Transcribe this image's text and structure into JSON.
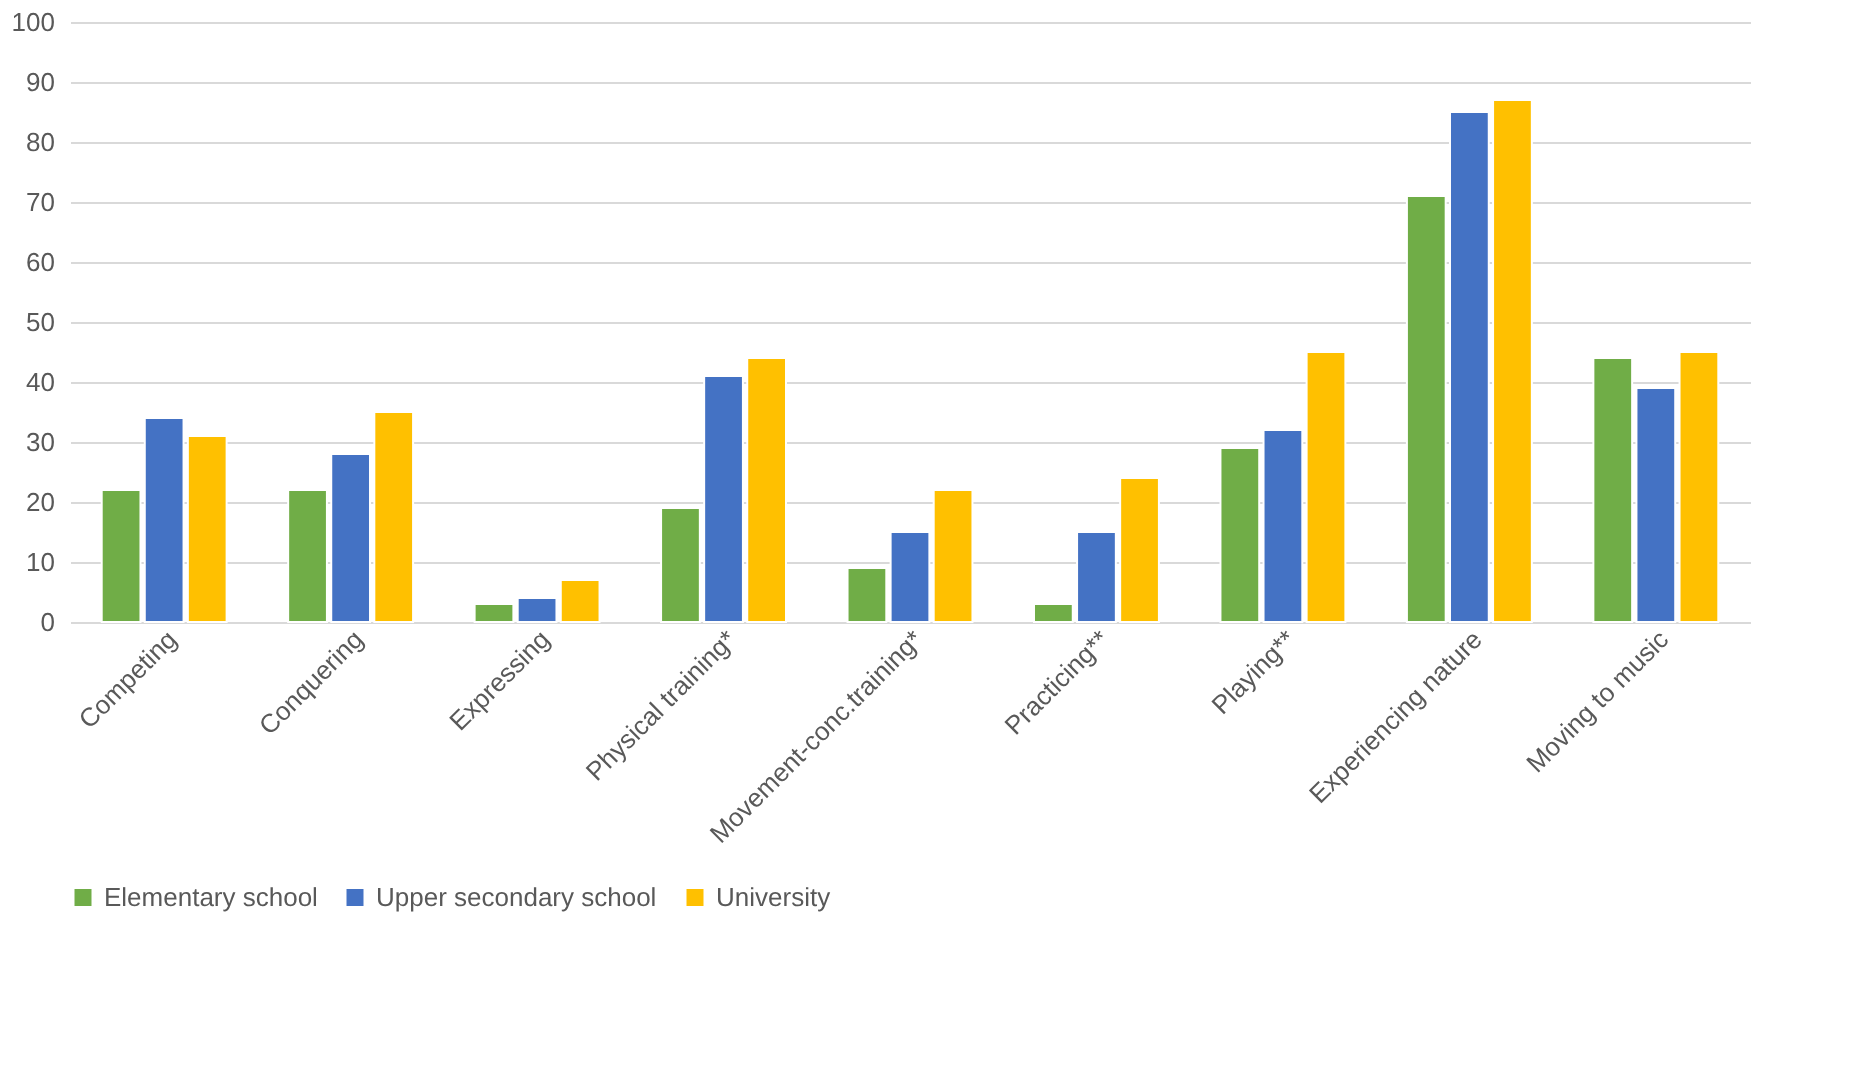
{
  "chart_data": {
    "type": "bar",
    "categories": [
      "Competing",
      "Conquering",
      "Expressing",
      "Physical training*",
      "Movement-conc.training*",
      "Practicing**",
      "Playing**",
      "Experiencing nature",
      "Moving to music"
    ],
    "series": [
      {
        "name": "Elementary school",
        "color": "#70ad47",
        "values": [
          22,
          22,
          3,
          19,
          9,
          3,
          29,
          71,
          44
        ]
      },
      {
        "name": "Upper secondary school",
        "color": "#4472c4",
        "values": [
          34,
          28,
          4,
          41,
          15,
          15,
          32,
          85,
          39
        ]
      },
      {
        "name": "University",
        "color": "#ffc000",
        "values": [
          31,
          35,
          7,
          44,
          22,
          24,
          45,
          87,
          45
        ]
      }
    ],
    "ylim": [
      0,
      100
    ],
    "yticks": [
      0,
      10,
      20,
      30,
      40,
      50,
      60,
      70,
      80,
      90,
      100
    ],
    "grid": "y",
    "legend": "bottom"
  }
}
